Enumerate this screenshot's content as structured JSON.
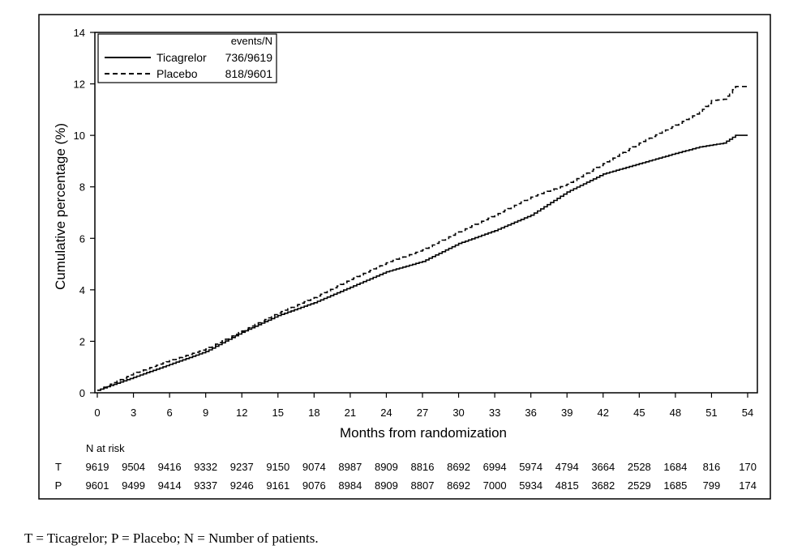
{
  "chart_data": {
    "type": "line",
    "xlabel": "Months from randomization",
    "ylabel": "Cumulative percentage (%)",
    "xlim": [
      0,
      54
    ],
    "ylim": [
      0,
      14
    ],
    "x_ticks": [
      "0",
      "3",
      "6",
      "9",
      "12",
      "15",
      "18",
      "21",
      "24",
      "27",
      "30",
      "33",
      "36",
      "39",
      "42",
      "45",
      "48",
      "51",
      "54"
    ],
    "y_ticks": [
      "0",
      "2",
      "4",
      "6",
      "8",
      "10",
      "12",
      "14"
    ],
    "grid": false,
    "legend_position": "top-left",
    "legend_header": "events/N",
    "series": [
      {
        "name": "Ticagrelor",
        "events": "736/9619",
        "style": "solid",
        "x": [
          0,
          3,
          6,
          9,
          12,
          15,
          18,
          21,
          24,
          27,
          30,
          33,
          36,
          39,
          42,
          45,
          48,
          50,
          52,
          53,
          54
        ],
        "y": [
          0.1,
          0.6,
          1.1,
          1.6,
          2.35,
          3.0,
          3.5,
          4.1,
          4.7,
          5.1,
          5.8,
          6.3,
          6.9,
          7.8,
          8.5,
          8.9,
          9.3,
          9.55,
          9.7,
          10.0,
          10.0
        ]
      },
      {
        "name": "Placebo",
        "events": "818/9601",
        "style": "dashed",
        "x": [
          0,
          3,
          6,
          9,
          12,
          15,
          18,
          21,
          24,
          27,
          30,
          33,
          36,
          39,
          42,
          45,
          48,
          50,
          51,
          52,
          53,
          54
        ],
        "y": [
          0.1,
          0.75,
          1.25,
          1.7,
          2.4,
          3.1,
          3.7,
          4.4,
          5.05,
          5.55,
          6.25,
          6.9,
          7.6,
          8.1,
          8.9,
          9.7,
          10.4,
          10.9,
          11.35,
          11.4,
          11.9,
          11.9
        ]
      }
    ],
    "risk_table": {
      "title": "N at risk",
      "rows": [
        {
          "label": "T",
          "values": [
            "9619",
            "9504",
            "9416",
            "9332",
            "9237",
            "9150",
            "9074",
            "8987",
            "8909",
            "8816",
            "8692",
            "6994",
            "5974",
            "4794",
            "3664",
            "2528",
            "1684",
            "816",
            "170"
          ]
        },
        {
          "label": "P",
          "values": [
            "9601",
            "9499",
            "9414",
            "9337",
            "9246",
            "9161",
            "9076",
            "8984",
            "8909",
            "8807",
            "8692",
            "7000",
            "5934",
            "4815",
            "3682",
            "2529",
            "1685",
            "799",
            "174"
          ]
        }
      ]
    }
  },
  "footnote": "T = Ticagrelor; P = Placebo; N = Number of patients."
}
